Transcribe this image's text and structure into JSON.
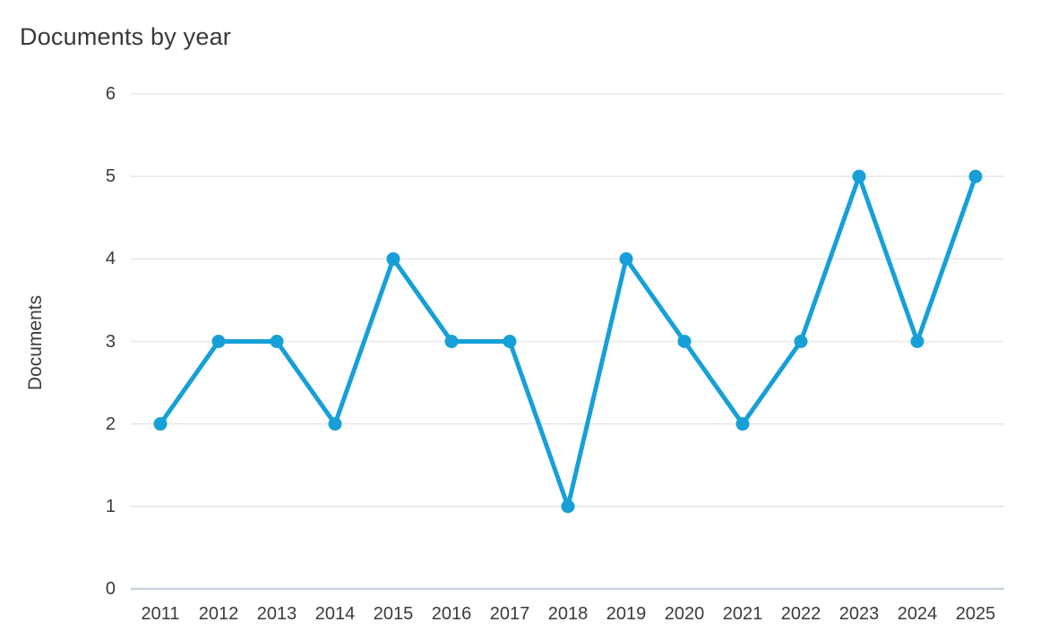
{
  "page": {
    "title": "Documents by year"
  },
  "chart_data": {
    "type": "line",
    "title": "Documents by year",
    "x": [
      2011,
      2012,
      2013,
      2014,
      2015,
      2016,
      2017,
      2018,
      2019,
      2020,
      2021,
      2022,
      2023,
      2024,
      2025
    ],
    "series": [
      {
        "name": "Documents",
        "values": [
          2,
          3,
          3,
          2,
          4,
          3,
          3,
          1,
          4,
          3,
          2,
          3,
          5,
          3,
          5
        ]
      }
    ],
    "xlabel": "",
    "ylabel": "Documents",
    "ylim": [
      0,
      6
    ],
    "yticks": [
      0,
      1,
      2,
      3,
      4,
      5,
      6
    ],
    "grid": "horizontal",
    "legend_position": "none",
    "line_color": "#17a0d7",
    "marker": "circle",
    "gridline_color": "#e8e8e8",
    "baseline_color": "#c9d2dc",
    "text_color": "#3b3a3e",
    "background_color": "#ffffff"
  }
}
